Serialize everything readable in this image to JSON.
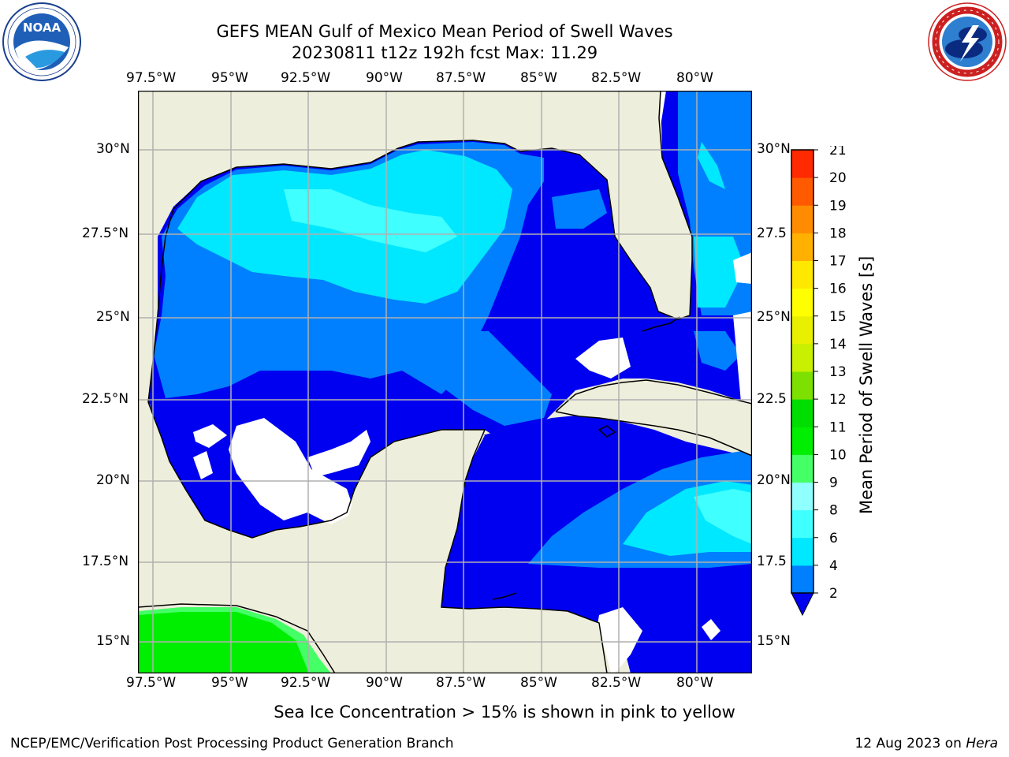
{
  "header": {
    "title_line1": "GEFS MEAN Gulf of Mexico Mean Period of Swell Waves",
    "title_line2": "20230811 t12z 192h fcst   Max: 11.29"
  },
  "logos": {
    "left_name": "NOAA",
    "left_ring_text": "NATIONAL OCEANIC AND ATMOSPHERIC ADMINISTRATION · U.S. DEPARTMENT OF COMMERCE",
    "right_ring_text": "NATIONAL WEATHER SERVICE"
  },
  "map": {
    "lon_ticks": [
      "97.5°W",
      "95°W",
      "92.5°W",
      "90°W",
      "87.5°W",
      "85°W",
      "82.5°W",
      "80°W"
    ],
    "lat_ticks_left": [
      "30°N",
      "27.5°N",
      "25°N",
      "22.5°N",
      "20°N",
      "17.5°N",
      "15°N"
    ],
    "lat_ticks_right": [
      "30°N",
      "27.5",
      "25°N",
      "22.5",
      "20°N",
      "17.5",
      "15°N"
    ],
    "colors": {
      "land": "#eeeedc",
      "ocean_2_4": "#0080ff",
      "ocean_below_2": "#0000f0",
      "ocean_4_6": "#00e8ff",
      "ocean_6_8": "#40ffff",
      "green_10_11": "#00ee00",
      "green_9_10": "#44ff66",
      "grid": "#b0b0b0",
      "coast": "#000000"
    }
  },
  "colorbar": {
    "label": "Mean Period of Swell Waves [s]",
    "ticks": [
      "2",
      "4",
      "6",
      "8",
      "9",
      "10",
      "11",
      "12",
      "13",
      "14",
      "15",
      "16",
      "17",
      "18",
      "19",
      "20",
      "21"
    ],
    "colors": [
      "#0080ff",
      "#00e8ff",
      "#40ffff",
      "#90ffff",
      "#44ff66",
      "#00ee00",
      "#00dd00",
      "#7ee000",
      "#c8f000",
      "#e8f000",
      "#ffff00",
      "#ffe800",
      "#ffb000",
      "#ff8c00",
      "#ff5a00",
      "#ff2a00",
      "#ff0000"
    ],
    "extend_color": "#0000f0"
  },
  "caption": "Sea Ice Concentration > 15% is shown in pink to yellow",
  "footer": {
    "left": "NCEP/EMC/Verification Post Processing Product Generation Branch",
    "right_prefix": "12 Aug 2023 on ",
    "right_host": "Hera"
  }
}
